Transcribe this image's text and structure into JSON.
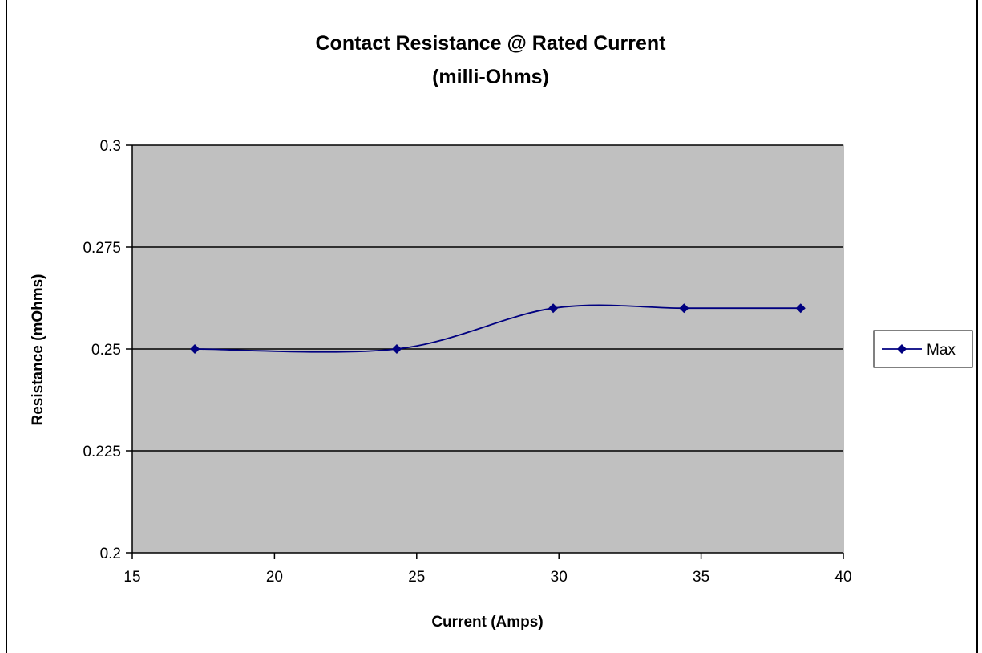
{
  "chart_data": {
    "type": "line",
    "title": "Contact Resistance @ Rated Current",
    "subtitle": "(milli-Ohms)",
    "xlabel": "Current (Amps)",
    "ylabel": "Resistance (mOhms)",
    "xlim": [
      15,
      40
    ],
    "ylim": [
      0.2,
      0.3
    ],
    "xticks": [
      15,
      20,
      25,
      30,
      35,
      40
    ],
    "yticks": [
      0.2,
      0.225,
      0.25,
      0.275,
      0.3
    ],
    "x_tick_labels": [
      "15",
      "20",
      "25",
      "30",
      "35",
      "40"
    ],
    "y_tick_labels": [
      "0.2",
      "0.225",
      "0.25",
      "0.275",
      "0.3"
    ],
    "smoothed": true,
    "grid": "horizontal",
    "legend_position": "right",
    "series": [
      {
        "name": "Max",
        "color": "#000080",
        "marker": "diamond",
        "x": [
          17.2,
          24.3,
          29.8,
          34.4,
          38.5
        ],
        "y": [
          0.25,
          0.25,
          0.26,
          0.26,
          0.26
        ]
      }
    ],
    "colors": {
      "plot_background": "#c0c0c0",
      "gridline": "#000000"
    }
  }
}
